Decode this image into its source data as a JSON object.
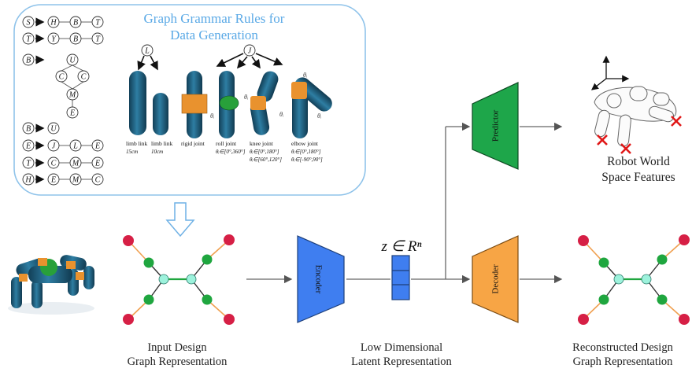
{
  "grammar_box": {
    "title_line1": "Graph Grammar Rules for",
    "title_line2": "Data Generation"
  },
  "grammar_rules": [
    {
      "lhs": "S",
      "rhs": [
        "H",
        "B",
        "T"
      ]
    },
    {
      "lhs": "T",
      "rhs": [
        "Y",
        "B",
        "T"
      ]
    },
    {
      "lhs": "B",
      "rhs": [
        "U",
        "C",
        "C",
        "M",
        "E"
      ]
    },
    {
      "lhs": "B",
      "rhs": [
        "U"
      ]
    },
    {
      "lhs": "E",
      "rhs": [
        "J",
        "L",
        "E"
      ]
    },
    {
      "lhs": "T",
      "rhs": [
        "C",
        "M",
        "E"
      ]
    },
    {
      "lhs": "H",
      "rhs": [
        "E",
        "M",
        "C"
      ]
    }
  ],
  "parts": {
    "limb_node": "L",
    "joint_node": "J",
    "theta_symbol": "θᵢ",
    "labels": [
      {
        "name": "limb link",
        "sub": [
          "15cm"
        ]
      },
      {
        "name": "limb link",
        "sub": [
          "10cm"
        ]
      },
      {
        "name": "rigid joint",
        "sub": []
      },
      {
        "name": "roll joint",
        "sub": [
          "θᵢ∈[0°,360°]"
        ]
      },
      {
        "name": "knee joint",
        "sub": [
          "θᵢ∈[0°,180°]",
          "θᵢ∈[60°,120°]"
        ]
      },
      {
        "name": "elbow joint",
        "sub": [
          "θᵢ∈[0°,180°]",
          "θᵢ∈[-90°,90°]"
        ]
      }
    ]
  },
  "encoder_label": "Encoder",
  "decoder_label": "Decoder",
  "predictor_label": "Predictor",
  "latent_label": "z ∈ Rⁿ",
  "captions": {
    "input_line1": "Input Design",
    "input_line2": "Graph Representation",
    "latent_line1": "Low Dimensional",
    "latent_line2": "Latent Representation",
    "recon_line1": "Reconstructed Design",
    "recon_line2": "Graph Representation",
    "features_line1": "Robot World",
    "features_line2": "Space Features"
  },
  "colors": {
    "grammar_border": "#8fc3ea",
    "title": "#5aa9e6",
    "encoder": "#3f7ef0",
    "decoder": "#f7a545",
    "predictor": "#1ea64a",
    "latent": "#3f7ef0",
    "node_red": "#d61f45",
    "node_green": "#1fa63f",
    "node_center": "#9df2dc",
    "edge_orange": "#f0a050",
    "edge_green": "#1fa63f",
    "robot_body": "#1d5f7e",
    "robot_joint_orange": "#e9922e",
    "robot_joint_green": "#28a03a",
    "cross": "#e01818"
  }
}
